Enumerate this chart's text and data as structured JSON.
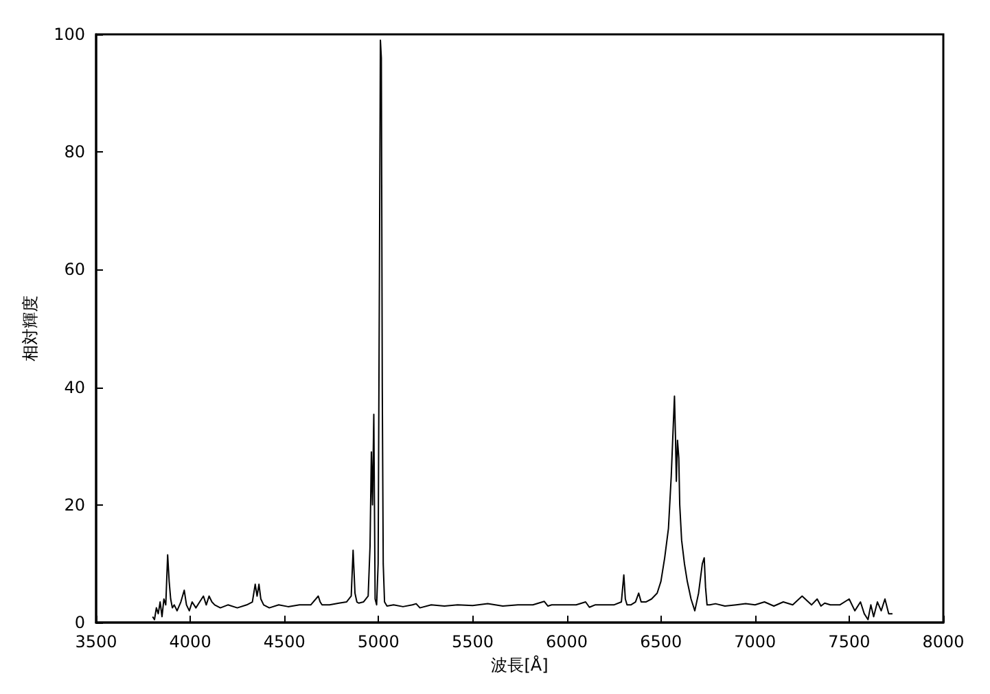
{
  "chart_data": {
    "type": "line",
    "xlabel": "波長[Å]",
    "ylabel": "相対輝度",
    "xlim": [
      3500,
      8000
    ],
    "ylim": [
      0,
      100
    ],
    "xticks": [
      3500,
      4000,
      4500,
      5000,
      5500,
      6000,
      6500,
      7000,
      7500,
      8000
    ],
    "yticks": [
      0,
      20,
      40,
      60,
      80,
      100
    ],
    "grid": false,
    "marker": "none",
    "line_style": "solid",
    "series": [
      {
        "color": "#000000",
        "x": [
          3800,
          3810,
          3820,
          3830,
          3840,
          3850,
          3860,
          3870,
          3880,
          3888,
          3896,
          3905,
          3915,
          3930,
          3950,
          3968,
          3980,
          3995,
          4010,
          4030,
          4050,
          4070,
          4085,
          4100,
          4115,
          4130,
          4160,
          4200,
          4250,
          4300,
          4330,
          4345,
          4355,
          4365,
          4375,
          4390,
          4420,
          4470,
          4520,
          4580,
          4640,
          4680,
          4690,
          4700,
          4740,
          4790,
          4830,
          4855,
          4865,
          4875,
          4885,
          4895,
          4920,
          4945,
          4955,
          4962,
          4968,
          4975,
          4982,
          4990,
          4998,
          5005,
          5010,
          5015,
          5020,
          5025,
          5032,
          5045,
          5080,
          5130,
          5180,
          5200,
          5220,
          5280,
          5350,
          5420,
          5500,
          5580,
          5660,
          5740,
          5820,
          5880,
          5900,
          5920,
          5980,
          6050,
          6100,
          6120,
          6150,
          6200,
          6250,
          6290,
          6303,
          6311,
          6320,
          6340,
          6365,
          6382,
          6395,
          6420,
          6450,
          6480,
          6500,
          6520,
          6540,
          6555,
          6565,
          6572,
          6577,
          6582,
          6588,
          6595,
          6600,
          6610,
          6625,
          6640,
          6660,
          6680,
          6700,
          6720,
          6730,
          6737,
          6745,
          6760,
          6790,
          6840,
          6900,
          6950,
          7000,
          7050,
          7100,
          7150,
          7200,
          7250,
          7300,
          7330,
          7350,
          7370,
          7400,
          7450,
          7500,
          7530,
          7560,
          7580,
          7600,
          7615,
          7630,
          7650,
          7670,
          7690,
          7710,
          7730
        ],
        "values": [
          1,
          0.5,
          2.5,
          1.5,
          3.5,
          1,
          4,
          3,
          11.5,
          7,
          4,
          2.5,
          3,
          2,
          3.5,
          5.5,
          3,
          2,
          3.5,
          2.5,
          3.5,
          4.5,
          3,
          4.5,
          3.5,
          3,
          2.5,
          3,
          2.5,
          3,
          3.5,
          6.5,
          4.5,
          6.5,
          4,
          3,
          2.5,
          3,
          2.7,
          3,
          3,
          4.5,
          3.5,
          3,
          3,
          3.3,
          3.5,
          4.5,
          12.3,
          5,
          3.5,
          3.3,
          3.5,
          4.5,
          13,
          29,
          20,
          35.4,
          4,
          3,
          10,
          60,
          99,
          96,
          40,
          10,
          3.5,
          2.8,
          3,
          2.7,
          3,
          3.2,
          2.5,
          3,
          2.8,
          3,
          2.9,
          3.2,
          2.8,
          3,
          3,
          3.6,
          2.8,
          3,
          3,
          3,
          3.5,
          2.6,
          3,
          3,
          3,
          3.5,
          8.1,
          4,
          3,
          3,
          3.5,
          5,
          3.5,
          3.5,
          4,
          5,
          7,
          11,
          16,
          25,
          33,
          38.5,
          32,
          24,
          31,
          28,
          20,
          14,
          10,
          7,
          4,
          2,
          5,
          10,
          11,
          6,
          3,
          3,
          3.2,
          2.8,
          3,
          3.2,
          3,
          3.5,
          2.8,
          3.5,
          3,
          4.5,
          3,
          4,
          2.8,
          3.3,
          3,
          3,
          4,
          2,
          3.5,
          1.5,
          0.5,
          3,
          1,
          3.5,
          2,
          4,
          1.5,
          1.5
        ]
      }
    ]
  }
}
